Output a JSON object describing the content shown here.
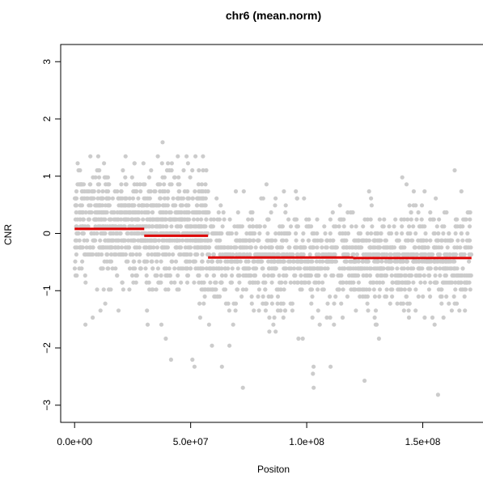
{
  "chart_data": {
    "type": "scatter",
    "title": "chr6 (mean.norm)",
    "xlabel": "Positon",
    "ylabel": "CNR",
    "xlim": [
      -6000000,
      177000000
    ],
    "ylim": [
      -3.3,
      3.3
    ],
    "x_ticks": [
      0,
      50000000,
      100000000,
      150000000
    ],
    "x_tick_labels": [
      "0.0e+00",
      "5.0e+07",
      "1.0e+08",
      "1.5e+08"
    ],
    "y_ticks": [
      -3,
      -2,
      -1,
      0,
      1,
      2,
      3
    ],
    "y_tick_labels": [
      "−3",
      "−2",
      "−1",
      "0",
      "1",
      "2",
      "3"
    ],
    "grid": false,
    "point_color": "#cccccc",
    "segment_color": "#dd0000",
    "point_count_estimate": 2400,
    "point_density_note": "Dense cloud of grey points spanning the full chromosome; points appear quantized into horizontal bands near CNR multiples of ~0.12.",
    "series": [
      {
        "name": "segments",
        "kind": "segment",
        "segments": [
          {
            "x_start": 0,
            "x_end": 30000000,
            "y": 0.08
          },
          {
            "x_start": 30000000,
            "x_end": 57500000,
            "y": -0.04
          },
          {
            "x_start": 57500000,
            "x_end": 120000000,
            "y": -0.42
          },
          {
            "x_start": 120000000,
            "x_end": 171000000,
            "y": -0.43
          }
        ]
      }
    ],
    "point_regions": [
      {
        "x_start": 0,
        "x_end": 30000000,
        "count": 520,
        "center": 0.15,
        "spread": 0.45,
        "min": -1.75,
        "max": 1.35
      },
      {
        "x_start": 30000000,
        "x_end": 57500000,
        "count": 560,
        "center": 0.05,
        "spread": 0.5,
        "min": -2.5,
        "max": 1.75
      },
      {
        "x_start": 57500000,
        "x_end": 120000000,
        "count": 700,
        "center": -0.45,
        "spread": 0.42,
        "min": -2.75,
        "max": 0.85
      },
      {
        "x_start": 120000000,
        "x_end": 171000000,
        "count": 620,
        "center": -0.45,
        "spread": 0.42,
        "min": -3.05,
        "max": 1.15
      }
    ]
  }
}
